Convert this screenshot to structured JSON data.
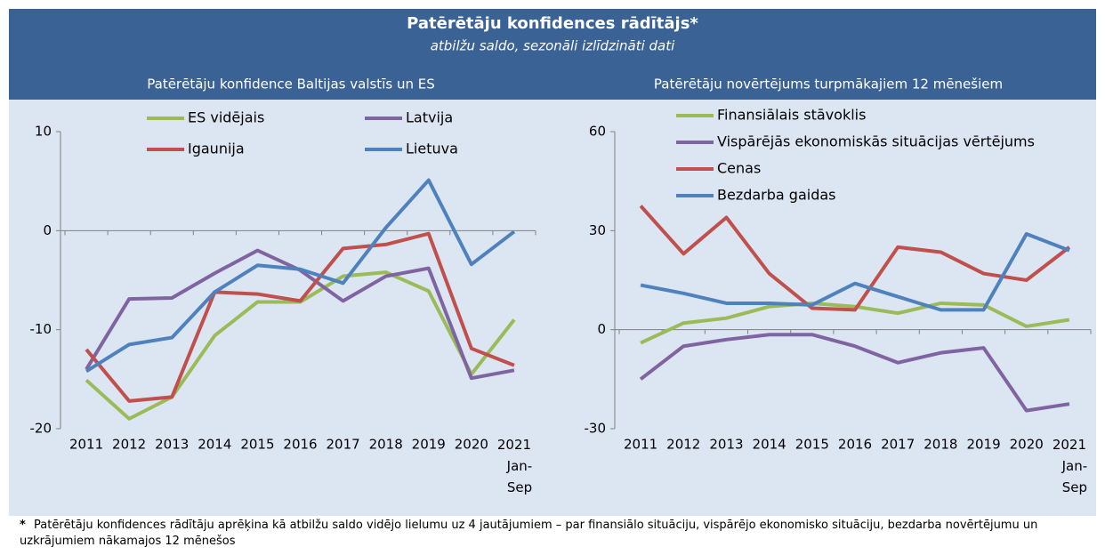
{
  "title": "Patērētāju konfidences rādītājs*",
  "subtitle": "atbilžu saldo, sezonāli izlīdzināti dati",
  "footnote": {
    "marker": "*",
    "text": "Patērētāju konfidences rādītāju aprēķina kā atbilžu saldo vidējo lielumu uz 4 jautājumiem – par finansiālo situāciju, vispārējo ekonomisko situāciju, bezdarba novērtējumu un uzkrājumiem nākamajos 12 mēnešos"
  },
  "chart_data": [
    {
      "type": "line",
      "title": "Patērētāju konfidence Baltijas valstīs un ES",
      "categories": [
        "2011",
        "2012",
        "2013",
        "2014",
        "2015",
        "2016",
        "2017",
        "2018",
        "2019",
        "2020",
        "2021 Jan-Sep"
      ],
      "series": [
        {
          "name": "ES vidējais",
          "color": "#9bbb59",
          "values": [
            -15.1,
            -19.0,
            -16.8,
            -10.6,
            -7.2,
            -7.2,
            -4.6,
            -4.2,
            -6.1,
            -14.5,
            -9.0
          ]
        },
        {
          "name": "Latvija",
          "color": "#8064a2",
          "values": [
            -14.0,
            -6.9,
            -6.8,
            -4.3,
            -2.0,
            -4.0,
            -7.1,
            -4.6,
            -3.8,
            -14.9,
            -14.1
          ]
        },
        {
          "name": "Igaunija",
          "color": "#c0504d",
          "values": [
            -12.0,
            -17.2,
            -16.8,
            -6.2,
            -6.4,
            -7.1,
            -1.8,
            -1.4,
            -0.3,
            -11.9,
            -13.6
          ]
        },
        {
          "name": "Lietuva",
          "color": "#4f81bd",
          "values": [
            -14.2,
            -11.5,
            -10.8,
            -6.2,
            -3.5,
            -3.9,
            -5.3,
            0.3,
            5.1,
            -3.4,
            -0.1
          ]
        }
      ],
      "ylim": [
        -20,
        10
      ],
      "yticks": [
        -20,
        -10,
        0,
        10
      ]
    },
    {
      "type": "line",
      "title": "Patērētāju novērtējums turpmākajiem 12 mēnešiem",
      "categories": [
        "2011",
        "2012",
        "2013",
        "2014",
        "2015",
        "2016",
        "2017",
        "2018",
        "2019",
        "2020",
        "2021 Jan-Sep"
      ],
      "series": [
        {
          "name": "Finansiālais stāvoklis",
          "color": "#9bbb59",
          "values": [
            -4,
            2,
            3.5,
            7,
            8,
            7,
            5,
            8,
            7.5,
            1,
            3
          ]
        },
        {
          "name": "Vispārējās ekonomiskās situācijas vērtējums",
          "color": "#8064a2",
          "values": [
            -15,
            -5,
            -3,
            -1.5,
            -1.5,
            -5,
            -10,
            -7,
            -5.5,
            -24.5,
            -22.5
          ]
        },
        {
          "name": "Cenas",
          "color": "#c0504d",
          "values": [
            37.5,
            23,
            34,
            17,
            6.5,
            6,
            25,
            23.5,
            17,
            15,
            25
          ]
        },
        {
          "name": "Bezdarba gaidas",
          "color": "#4f81bd",
          "values": [
            13.5,
            11,
            8,
            8,
            7.5,
            14,
            10,
            6,
            6,
            29,
            24
          ]
        }
      ],
      "ylim": [
        -30,
        60
      ],
      "yticks": [
        -30,
        0,
        30,
        60
      ]
    }
  ]
}
